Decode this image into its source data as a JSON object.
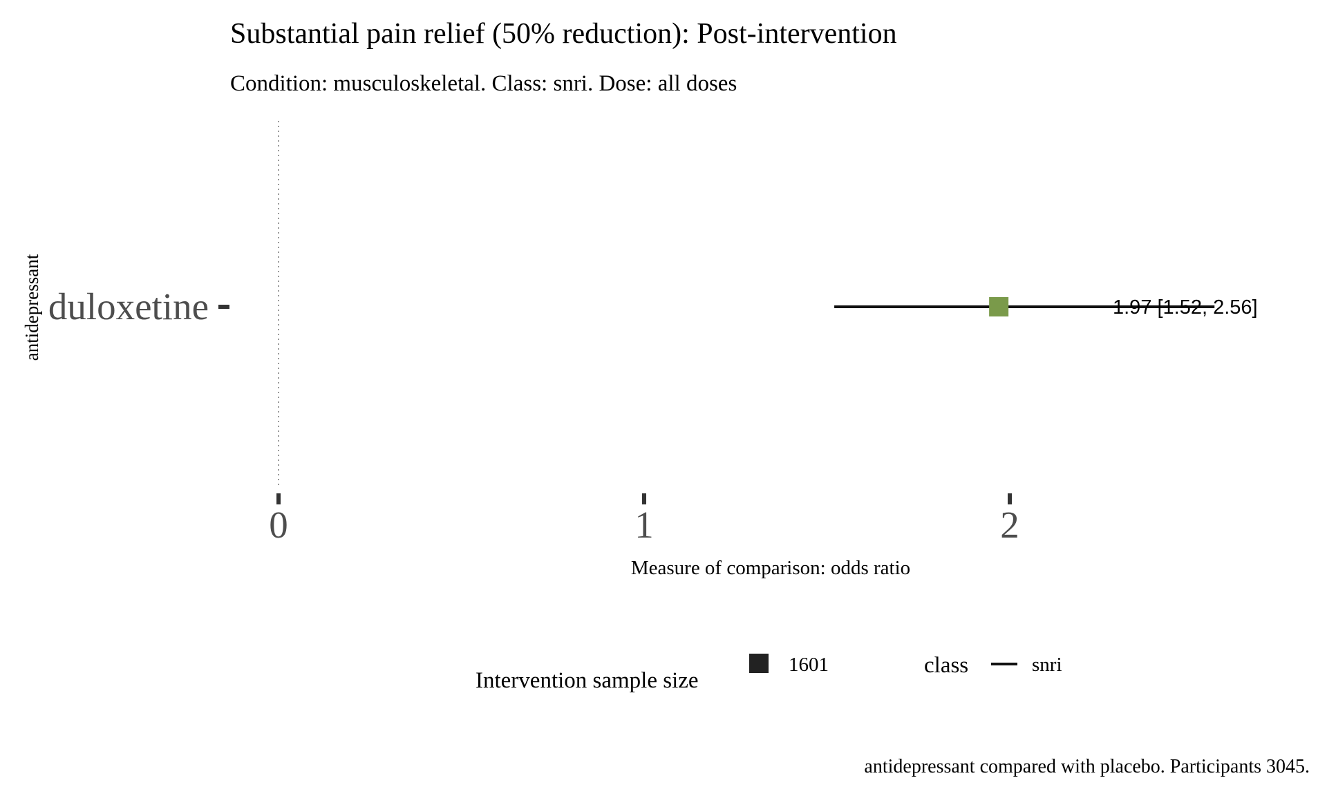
{
  "chart_data": {
    "type": "forest",
    "title": "Substantial pain relief (50% reduction): Post-intervention",
    "subtitle": "Condition: musculoskeletal. Class: snri. Dose: all doses",
    "xlabel": "Measure of comparison: odds ratio",
    "ylabel": "antidepressant",
    "xlim": [
      0,
      2.75
    ],
    "x_ticks": [
      0,
      1,
      2
    ],
    "x_tick_labels": [
      "0",
      "1",
      "2"
    ],
    "reference_line": 0,
    "grid": false,
    "categories": [
      "duloxetine"
    ],
    "rows": [
      {
        "label": "duloxetine",
        "estimate": 1.97,
        "lower": 1.52,
        "upper": 2.56,
        "estimate_text": "1.97 [1.52, 2.56]",
        "sample_size": 1601,
        "class": "snri"
      }
    ],
    "legend": {
      "position": "bottom",
      "size_title": "Intervention sample size",
      "size_entries": [
        "1601"
      ],
      "class_title": "class",
      "class_entries": [
        "snri"
      ]
    },
    "caption": "antidepressant compared with placebo. Participants 3045."
  },
  "colors": {
    "point": "#7a9a4a",
    "line": "#111111",
    "axis_text": "#4d4d4d",
    "reference": "#999999",
    "legend_key": "#222222"
  }
}
